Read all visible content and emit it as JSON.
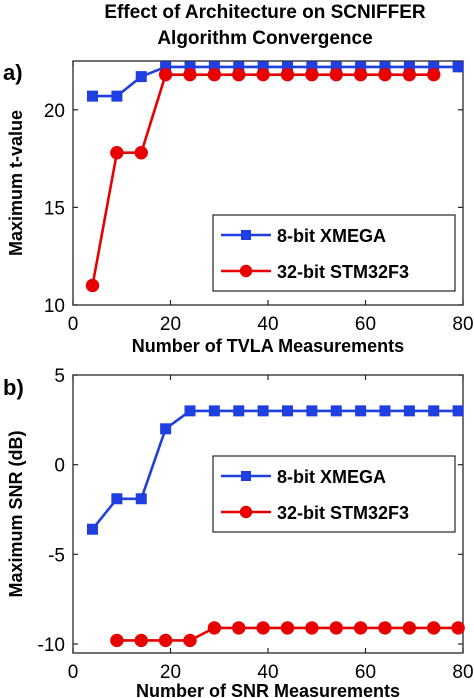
{
  "title_lines": [
    "Effect of Architecture on SCNIFFER",
    "Algorithm Convergence"
  ],
  "chart_data": [
    {
      "type": "line",
      "panel_label": "a)",
      "xlabel": "Number of TVLA Measurements",
      "ylabel": "Maximum t-value",
      "xlim": [
        0,
        80
      ],
      "ylim": [
        10,
        22.5
      ],
      "xticks": [
        0,
        20,
        40,
        60,
        80
      ],
      "yticks": [
        10,
        15,
        20
      ],
      "grid": false,
      "legend_position": "lower-right",
      "series": [
        {
          "name": "8-bit XMEGA",
          "color": "#1f3fe0",
          "marker": "square",
          "x": [
            4,
            9,
            14,
            19,
            24,
            29,
            34,
            39,
            44,
            49,
            54,
            59,
            64,
            69,
            74,
            79
          ],
          "y": [
            20.7,
            20.7,
            21.7,
            22.2,
            22.2,
            22.2,
            22.2,
            22.2,
            22.2,
            22.2,
            22.2,
            22.2,
            22.2,
            22.2,
            22.2,
            22.2
          ]
        },
        {
          "name": "32-bit STM32F3",
          "color": "#e80000",
          "marker": "circle",
          "x": [
            4,
            9,
            14,
            19,
            24,
            29,
            34,
            39,
            44,
            49,
            54,
            59,
            64,
            69,
            74
          ],
          "y": [
            11.0,
            17.8,
            17.8,
            21.8,
            21.8,
            21.8,
            21.8,
            21.8,
            21.8,
            21.8,
            21.8,
            21.8,
            21.8,
            21.8,
            21.8
          ]
        }
      ]
    },
    {
      "type": "line",
      "panel_label": "b)",
      "xlabel": "Number of SNR Measurements",
      "ylabel": "Maximum SNR (dB)",
      "xlim": [
        0,
        80
      ],
      "ylim": [
        -10.5,
        5
      ],
      "xticks": [
        0,
        20,
        40,
        60,
        80
      ],
      "yticks": [
        -10,
        -5,
        0,
        5
      ],
      "grid": false,
      "legend_position": "center-right",
      "series": [
        {
          "name": "8-bit XMEGA",
          "color": "#1f3fe0",
          "marker": "square",
          "x": [
            4,
            9,
            14,
            19,
            24,
            29,
            34,
            39,
            44,
            49,
            54,
            59,
            64,
            69,
            74,
            79
          ],
          "y": [
            -3.6,
            -1.9,
            -1.9,
            2.0,
            3.0,
            3.0,
            3.0,
            3.0,
            3.0,
            3.0,
            3.0,
            3.0,
            3.0,
            3.0,
            3.0,
            3.0
          ]
        },
        {
          "name": "32-bit STM32F3",
          "color": "#e80000",
          "marker": "circle",
          "x": [
            9,
            14,
            19,
            24,
            29,
            34,
            39,
            44,
            49,
            54,
            59,
            64,
            69,
            74,
            79
          ],
          "y": [
            -9.8,
            -9.8,
            -9.8,
            -9.8,
            -9.1,
            -9.1,
            -9.1,
            -9.1,
            -9.1,
            -9.1,
            -9.1,
            -9.1,
            -9.1,
            -9.1,
            -9.1
          ]
        }
      ]
    }
  ]
}
